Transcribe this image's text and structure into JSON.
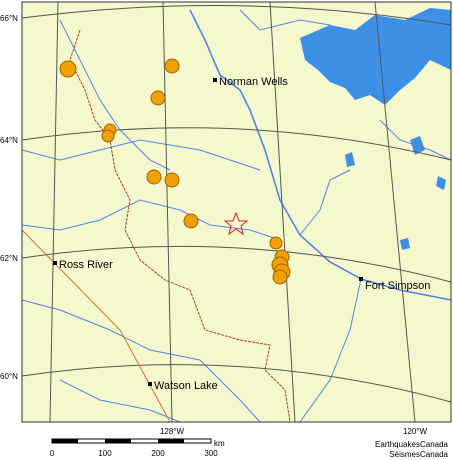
{
  "map": {
    "latitude_labels": [
      "66°N",
      "64°N",
      "62°N",
      "60°N"
    ],
    "longitude_labels": [
      "128°W",
      "120°W"
    ],
    "places": [
      "Norman Wells",
      "Ross River",
      "Fort Simpson",
      "Watson Lake"
    ],
    "scale": {
      "ticks": [
        "0",
        "100",
        "200",
        "300"
      ],
      "unit": "km"
    },
    "credits": [
      "EarthquakesCanada",
      "SéismesCanada"
    ]
  }
}
